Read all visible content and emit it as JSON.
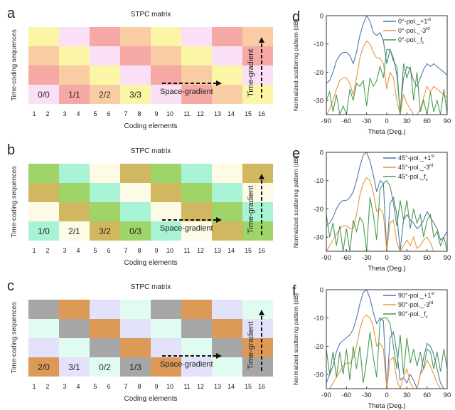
{
  "matrix_panels": [
    {
      "letter": "a",
      "title": "STPC matrix",
      "ylabel": "Time-coding sequences",
      "xlabel": "Coding elements",
      "space_gradient_label": "Space-gradient",
      "time_gradient_label": "Time-gradient",
      "palette": {
        "Y": "#fbf6a6",
        "P": "#fae0f7",
        "R": "#f6a8a5",
        "O": "#f9cca4"
      },
      "rows": [
        [
          "Y",
          "P",
          "R",
          "O",
          "Y",
          "P",
          "R",
          "O"
        ],
        [
          "O",
          "Y",
          "P",
          "R",
          "O",
          "Y",
          "P",
          "R"
        ],
        [
          "R",
          "O",
          "Y",
          "P",
          "R",
          "O",
          "Y",
          "P"
        ],
        [
          "P",
          "R",
          "O",
          "Y",
          "P",
          "R",
          "O",
          "Y"
        ]
      ],
      "cell_labels": [
        "0/0",
        "1/1",
        "2/2",
        "3/3"
      ],
      "coding_elements": [
        "1",
        "2",
        "3",
        "4",
        "5",
        "6",
        "7",
        "8",
        "9",
        "10",
        "11",
        "12",
        "13",
        "14",
        "15",
        "16"
      ]
    },
    {
      "letter": "b",
      "title": "STPC matrix",
      "ylabel": "Time-coding sequences",
      "xlabel": "Coding elements",
      "space_gradient_label": "Space-gradient",
      "time_gradient_label": "Time-gradient",
      "palette": {
        "G": "#9fd468",
        "T": "#a8f2d5",
        "C": "#fdfbe6",
        "K": "#d2b761"
      },
      "rows": [
        [
          "G",
          "T",
          "C",
          "K",
          "G",
          "T",
          "C",
          "K"
        ],
        [
          "K",
          "G",
          "T",
          "C",
          "K",
          "G",
          "T",
          "C"
        ],
        [
          "C",
          "K",
          "G",
          "T",
          "C",
          "K",
          "G",
          "T"
        ],
        [
          "T",
          "C",
          "K",
          "G",
          "T",
          "C",
          "K",
          "G"
        ]
      ],
      "cell_labels": [
        "1/0",
        "2/1",
        "3/2",
        "0/3"
      ],
      "coding_elements": [
        "1",
        "2",
        "3",
        "4",
        "5",
        "6",
        "7",
        "8",
        "9",
        "10",
        "11",
        "12",
        "13",
        "14",
        "15",
        "16"
      ]
    },
    {
      "letter": "c",
      "title": "STPC matrix",
      "ylabel": "Time-coding sequences",
      "xlabel": "Coding elements",
      "space_gradient_label": "Space-gradient",
      "time_gradient_label": "Time-gradient",
      "palette": {
        "Gy": "#a6a6a6",
        "Or": "#dd9a56",
        "L": "#e2e2fb",
        "M": "#e0fbef"
      },
      "rows": [
        [
          "Gy",
          "Or",
          "L",
          "M",
          "Gy",
          "Or",
          "L",
          "M"
        ],
        [
          "M",
          "Gy",
          "Or",
          "L",
          "M",
          "Gy",
          "Or",
          "L"
        ],
        [
          "L",
          "M",
          "Gy",
          "Or",
          "L",
          "M",
          "Gy",
          "Or"
        ],
        [
          "Or",
          "L",
          "M",
          "Gy",
          "Or",
          "L",
          "M",
          "Gy"
        ]
      ],
      "cell_labels": [
        "2/0",
        "3/1",
        "0/2",
        "1/3"
      ],
      "coding_elements": [
        "1",
        "2",
        "3",
        "4",
        "5",
        "6",
        "7",
        "8",
        "9",
        "10",
        "11",
        "12",
        "13",
        "14",
        "15",
        "16"
      ]
    }
  ],
  "chart_data": [
    {
      "type": "line",
      "letter": "d",
      "xlabel": "Theta (Deg.)",
      "ylabel": "Normalized scattering pattern (dB)",
      "xlim": [
        -90,
        90
      ],
      "ylim": [
        -35,
        0
      ],
      "xticks": [
        -90,
        -60,
        -30,
        0,
        30,
        60,
        90
      ],
      "yticks": [
        0,
        -10,
        -20,
        -30
      ],
      "legend_position": "top-right",
      "series": [
        {
          "name": "0°-pol._+1",
          "sup": "st",
          "color": "#4f77aa",
          "x": [
            -90,
            -85,
            -80,
            -75,
            -70,
            -65,
            -60,
            -55,
            -50,
            -45,
            -40,
            -35,
            -30,
            -25,
            -20,
            -15,
            -10,
            -5,
            0,
            5,
            10,
            15,
            20,
            25,
            30,
            35,
            40,
            45,
            50,
            55,
            60,
            65,
            70,
            75,
            80,
            85,
            90
          ],
          "y": [
            -24,
            -23,
            -20,
            -16,
            -14,
            -13,
            -13,
            -14,
            -17,
            -13,
            -7,
            -3,
            0,
            -2,
            -6,
            -7,
            -6,
            -9,
            -17,
            -12,
            -15,
            -21,
            -34,
            -22,
            -18,
            -19,
            -23,
            -25,
            -22,
            -19,
            -17,
            -18,
            -17,
            -18,
            -19,
            -20,
            -21
          ]
        },
        {
          "name": "0°-pol._-3",
          "sup": "rd",
          "color": "#e8953f",
          "x": [
            -90,
            -85,
            -80,
            -75,
            -70,
            -65,
            -60,
            -55,
            -50,
            -45,
            -40,
            -35,
            -30,
            -25,
            -20,
            -15,
            -10,
            -5,
            0,
            5,
            10,
            15,
            20,
            25,
            30,
            35,
            40,
            45,
            50,
            55,
            60,
            65,
            70,
            75,
            80,
            85,
            90
          ],
          "y": [
            -35,
            -33,
            -30,
            -26,
            -23,
            -22,
            -22,
            -24,
            -28,
            -22,
            -15,
            -11,
            -9,
            -10,
            -13,
            -15,
            -15,
            -17,
            -26,
            -20,
            -22,
            -30,
            -35,
            -28,
            -31,
            -33,
            -35,
            -35,
            -33,
            -29,
            -25,
            -27,
            -25,
            -26,
            -27,
            -28,
            -29
          ]
        },
        {
          "name": "0°-pol._f",
          "sub": "c",
          "color": "#4c9a52",
          "x": [
            -90,
            -85,
            -80,
            -75,
            -70,
            -65,
            -60,
            -55,
            -50,
            -45,
            -40,
            -35,
            -30,
            -25,
            -20,
            -15,
            -10,
            -5,
            0,
            5,
            10,
            15,
            20,
            25,
            30,
            35,
            40,
            45,
            50,
            55,
            60,
            65,
            70,
            75,
            80,
            85,
            90
          ],
          "y": [
            -30,
            -27,
            -34,
            -28,
            -35,
            -32,
            -35,
            -26,
            -30,
            -24,
            -25,
            -23,
            -32,
            -22,
            -25,
            -23,
            -18,
            -22,
            -12,
            -12,
            -16,
            -18,
            -35,
            -17,
            -22,
            -18,
            -30,
            -20,
            -34,
            -30,
            -35,
            -27,
            -34,
            -30,
            -35,
            -26,
            -35
          ]
        }
      ]
    },
    {
      "type": "line",
      "letter": "e",
      "xlabel": "Theta (Deg.)",
      "ylabel": "Normalized scattering pattern (dB)",
      "xlim": [
        -90,
        90
      ],
      "ylim": [
        -35,
        0
      ],
      "xticks": [
        -90,
        -60,
        -30,
        0,
        30,
        60,
        90
      ],
      "yticks": [
        0,
        -10,
        -20,
        -30
      ],
      "legend_position": "top-right",
      "series": [
        {
          "name": "45°-pol._+1",
          "sup": "st",
          "color": "#4f77aa",
          "x": [
            -90,
            -85,
            -80,
            -75,
            -70,
            -65,
            -60,
            -55,
            -50,
            -45,
            -40,
            -35,
            -30,
            -25,
            -20,
            -15,
            -10,
            -5,
            0,
            5,
            10,
            15,
            20,
            25,
            30,
            35,
            40,
            45,
            50,
            55,
            60,
            65,
            70,
            75,
            80,
            85,
            90
          ],
          "y": [
            -26,
            -25,
            -23,
            -20,
            -18,
            -17,
            -17,
            -16,
            -14,
            -10,
            -5,
            -1,
            0,
            -3,
            -8,
            -14,
            -10,
            -11,
            -35,
            -18,
            -16,
            -22,
            -35,
            -24,
            -22,
            -24,
            -25,
            -27,
            -26,
            -24,
            -21,
            -23,
            -25,
            -27,
            -31,
            -30,
            -28
          ]
        },
        {
          "name": "45°-pol._-3",
          "sup": "rd",
          "color": "#e8953f",
          "x": [
            -90,
            -85,
            -80,
            -75,
            -70,
            -65,
            -60,
            -55,
            -50,
            -45,
            -40,
            -35,
            -30,
            -25,
            -20,
            -15,
            -10,
            -5,
            0,
            5,
            10,
            15,
            20,
            25,
            30,
            35,
            40,
            45,
            50,
            55,
            60,
            65,
            70,
            75,
            80,
            85,
            90
          ],
          "y": [
            -35,
            -33,
            -31,
            -29,
            -27,
            -26,
            -26,
            -27,
            -27,
            -22,
            -15,
            -11,
            -9,
            -10,
            -14,
            -21,
            -20,
            -22,
            -35,
            -25,
            -24,
            -32,
            -35,
            -33,
            -31,
            -33,
            -30,
            -34,
            -33,
            -31,
            -30,
            -32,
            -35,
            -35,
            -35,
            -35,
            -35
          ]
        },
        {
          "name": "45°-pol._f",
          "sub": "c",
          "color": "#4c9a52",
          "x": [
            -90,
            -85,
            -80,
            -75,
            -70,
            -65,
            -60,
            -55,
            -50,
            -45,
            -40,
            -35,
            -30,
            -25,
            -20,
            -15,
            -10,
            -5,
            0,
            5,
            10,
            15,
            20,
            25,
            30,
            35,
            40,
            45,
            50,
            55,
            60,
            65,
            70,
            75,
            80,
            85,
            90
          ],
          "y": [
            -22,
            -30,
            -25,
            -33,
            -26,
            -35,
            -27,
            -35,
            -24,
            -28,
            -23,
            -25,
            -35,
            -16,
            -22,
            -31,
            -13,
            -11,
            -10,
            -12,
            -18,
            -26,
            -17,
            -24,
            -17,
            -27,
            -20,
            -25,
            -22,
            -30,
            -24,
            -22,
            -30,
            -28,
            -33,
            -30,
            -35
          ]
        }
      ]
    },
    {
      "type": "line",
      "letter": "f",
      "xlabel": "Theta (Deg.)",
      "ylabel": "Normalized scattering pattern (dB)",
      "xlim": [
        -90,
        90
      ],
      "ylim": [
        -35,
        0
      ],
      "xticks": [
        -90,
        -60,
        -30,
        0,
        30,
        60,
        90
      ],
      "yticks": [
        0,
        -10,
        -20,
        -30
      ],
      "legend_position": "top-right",
      "series": [
        {
          "name": "90°-pol._+1",
          "sup": "st",
          "color": "#4f77aa",
          "x": [
            -90,
            -85,
            -80,
            -75,
            -70,
            -65,
            -60,
            -55,
            -50,
            -45,
            -40,
            -35,
            -30,
            -25,
            -20,
            -15,
            -10,
            -5,
            0,
            5,
            10,
            15,
            20,
            25,
            30,
            35,
            40,
            45,
            50,
            55,
            60,
            65,
            70,
            75,
            80,
            85,
            90
          ],
          "y": [
            -33,
            -30,
            -27,
            -22,
            -19,
            -18,
            -17,
            -16,
            -14,
            -10,
            -5,
            -1,
            0,
            -3,
            -8,
            -12,
            -10,
            -11,
            -35,
            -17,
            -15,
            -22,
            -32,
            -31,
            -33,
            -30,
            -32,
            -35,
            -30,
            -24,
            -19,
            -20,
            -23,
            -28,
            -33,
            -35,
            -35
          ]
        },
        {
          "name": "90°-pol._-3",
          "sup": "rd",
          "color": "#e8953f",
          "x": [
            -90,
            -85,
            -80,
            -75,
            -70,
            -65,
            -60,
            -55,
            -50,
            -45,
            -40,
            -35,
            -30,
            -25,
            -20,
            -15,
            -10,
            -5,
            0,
            5,
            10,
            15,
            20,
            25,
            30,
            35,
            40,
            45,
            50,
            55,
            60,
            65,
            70,
            75,
            80,
            85,
            90
          ],
          "y": [
            -35,
            -35,
            -33,
            -31,
            -29,
            -27,
            -26,
            -26,
            -24,
            -20,
            -14,
            -10,
            -9,
            -10,
            -13,
            -20,
            -19,
            -21,
            -35,
            -25,
            -24,
            -32,
            -35,
            -31,
            -28,
            -33,
            -35,
            -35,
            -30,
            -28,
            -25,
            -27,
            -30,
            -33,
            -35,
            -35,
            -35
          ]
        },
        {
          "name": "90°-pol._f",
          "sub": "c",
          "color": "#4c9a52",
          "x": [
            -90,
            -85,
            -80,
            -75,
            -70,
            -65,
            -60,
            -55,
            -50,
            -45,
            -40,
            -35,
            -30,
            -25,
            -20,
            -15,
            -10,
            -5,
            0,
            5,
            10,
            15,
            20,
            25,
            30,
            35,
            40,
            45,
            50,
            55,
            60,
            65,
            70,
            75,
            80,
            85,
            90
          ],
          "y": [
            -21,
            -30,
            -22,
            -31,
            -22,
            -30,
            -21,
            -32,
            -20,
            -28,
            -20,
            -33,
            -25,
            -15,
            -24,
            -31,
            -11,
            -10,
            -10,
            -12,
            -20,
            -28,
            -16,
            -30,
            -17,
            -26,
            -21,
            -27,
            -22,
            -28,
            -21,
            -22,
            -28,
            -22,
            -29,
            -21,
            -28
          ]
        }
      ]
    }
  ]
}
